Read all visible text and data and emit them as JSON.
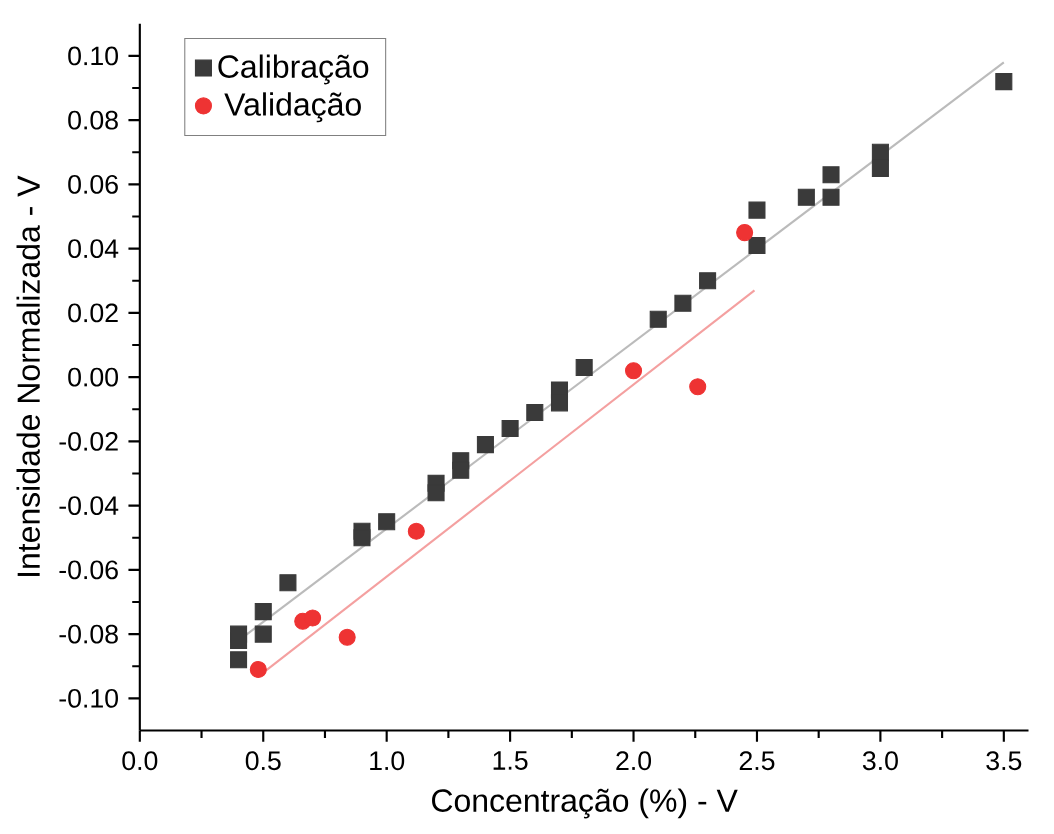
{
  "chart_data": {
    "type": "scatter",
    "xlabel": "Concentração (%) - V",
    "ylabel": "Intensidade Normalizada - V",
    "xlim": [
      0,
      3.6
    ],
    "ylim": [
      -0.11,
      0.11
    ],
    "xticks": [
      {
        "value": 0,
        "label": "0.0"
      },
      {
        "value": 0.5,
        "label": "0.5"
      },
      {
        "value": 1,
        "label": "1.0"
      },
      {
        "value": 1.5,
        "label": "1.5"
      },
      {
        "value": 2,
        "label": "2.0"
      },
      {
        "value": 2.5,
        "label": "2.5"
      },
      {
        "value": 3,
        "label": "3.0"
      },
      {
        "value": 3.5,
        "label": "3.5"
      }
    ],
    "yticks": [
      {
        "value": -0.1,
        "label": "-0.10"
      },
      {
        "value": -0.08,
        "label": "-0.08"
      },
      {
        "value": -0.06,
        "label": "-0.06"
      },
      {
        "value": -0.04,
        "label": "-0.04"
      },
      {
        "value": -0.02,
        "label": "-0.02"
      },
      {
        "value": 0,
        "label": "0.00"
      },
      {
        "value": 0.02,
        "label": "0.02"
      },
      {
        "value": 0.04,
        "label": "0.04"
      },
      {
        "value": 0.06,
        "label": "0.06"
      },
      {
        "value": 0.08,
        "label": "0.08"
      },
      {
        "value": 0.1,
        "label": "0.10"
      }
    ],
    "legend": "top left",
    "grid": false,
    "series": [
      {
        "name": "Calibração",
        "color": "#3a3a3a",
        "marker": "square",
        "x": [
          0.4,
          0.4,
          0.4,
          0.5,
          0.5,
          0.6,
          0.9,
          0.9,
          1.0,
          1.2,
          1.2,
          1.3,
          1.3,
          1.4,
          1.5,
          1.6,
          1.7,
          1.7,
          1.8,
          2.1,
          2.2,
          2.3,
          2.5,
          2.5,
          2.7,
          2.8,
          2.8,
          3.0,
          3.0,
          3.5
        ],
        "values": [
          -0.08,
          -0.082,
          -0.088,
          -0.073,
          -0.08,
          -0.064,
          -0.048,
          -0.05,
          -0.045,
          -0.033,
          -0.036,
          -0.026,
          -0.029,
          -0.021,
          -0.016,
          -0.011,
          -0.004,
          -0.008,
          0.003,
          0.018,
          0.023,
          0.03,
          0.052,
          0.041,
          0.056,
          0.063,
          0.056,
          0.07,
          0.065,
          0.092
        ]
      },
      {
        "name": "Validação",
        "color": "#ee3333",
        "marker": "circle",
        "x": [
          0.48,
          0.66,
          0.7,
          0.84,
          1.12,
          2.0,
          2.26,
          2.45
        ],
        "values": [
          -0.091,
          -0.076,
          -0.075,
          -0.081,
          -0.048,
          0.002,
          -0.003,
          0.045
        ]
      },
      {
        "type": "line",
        "color": "#bbbbbb",
        "x": [
          0.4,
          3.5
        ],
        "values": [
          -0.082,
          0.098
        ]
      },
      {
        "type": "line",
        "color": "#f4a0a0",
        "x": [
          0.5,
          2.49
        ],
        "values": [
          -0.092,
          0.027
        ]
      }
    ]
  }
}
